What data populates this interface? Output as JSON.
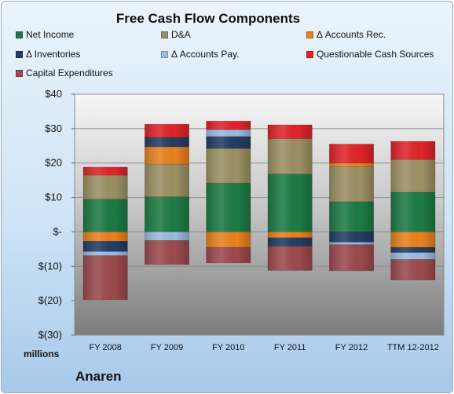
{
  "chart_data": {
    "type": "bar",
    "stacked": true,
    "title": "Free Cash Flow Components",
    "ylabel": "millions",
    "ylim": [
      -30,
      40
    ],
    "yticks": [
      40,
      30,
      20,
      10,
      0,
      -10,
      -20,
      -30
    ],
    "ytick_labels": [
      "$40",
      "$30",
      "$20",
      "$10",
      "$-",
      "$(10)",
      "$(20)",
      "$(30)"
    ],
    "grid": true,
    "legend_position": "top",
    "categories": [
      "FY 2008",
      "FY 2009",
      "FY 2010",
      "FY 2011",
      "FY 2012",
      "TTM 12-2012"
    ],
    "series": [
      {
        "name": "Net Income",
        "color": "#1e7b45",
        "values": [
          9.5,
          10.2,
          14.2,
          16.8,
          8.8,
          11.5
        ]
      },
      {
        "name": "D&A",
        "color": "#9c9063",
        "values": [
          7.0,
          9.5,
          10.0,
          10.3,
          10.2,
          9.5
        ]
      },
      {
        "name": "Δ Accounts Rec.",
        "color": "#e8821e",
        "values": [
          -2.7,
          5.0,
          -4.5,
          -1.7,
          1.0,
          -4.5
        ]
      },
      {
        "name": "Δ Inventories",
        "color": "#253d64",
        "values": [
          -3.0,
          2.8,
          3.5,
          -2.5,
          -3.0,
          -1.5
        ]
      },
      {
        "name": "Δ Accounts Pay.",
        "color": "#9bbbe1",
        "values": [
          -1.2,
          -2.5,
          2.0,
          0,
          -0.7,
          -2.0
        ]
      },
      {
        "name": "Questionable Cash Sources",
        "color": "#e0242a",
        "values": [
          2.3,
          3.8,
          2.5,
          4.0,
          5.5,
          5.3
        ]
      },
      {
        "name": "Capital Expenditures",
        "color": "#9c4a4d",
        "values": [
          -12.8,
          -7.0,
          -4.5,
          -7.0,
          -7.6,
          -6.0
        ]
      }
    ]
  },
  "brand": "Anaren"
}
